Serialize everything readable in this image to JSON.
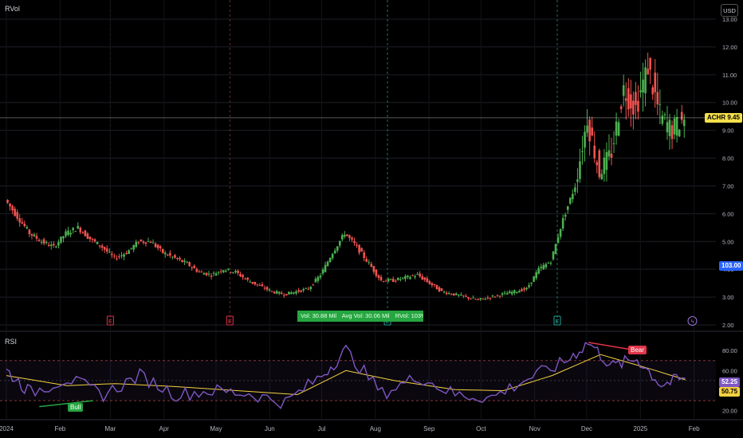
{
  "header": {
    "indicator": "RVol",
    "currency": "USD",
    "rsi_label": "RSI"
  },
  "price_tag": {
    "symbol": "ACHR",
    "value": "9.45",
    "color": "#f5e04a"
  },
  "volume_tag": {
    "value": "103.00",
    "color": "#2962ff"
  },
  "rsi_tags": {
    "rsi": "52.25",
    "ma": "50.75"
  },
  "volume_info": {
    "vol": "Vol: 30.88 Mil",
    "avg": "Avg Vol: 30.06 Mil",
    "rvol": "RVol: 103%"
  },
  "event_markers": [
    "E",
    "E",
    "E",
    "E",
    "ϟ"
  ],
  "rsi_labels": {
    "bull": "Bull",
    "bear": "Bear"
  },
  "colors": {
    "up": "#26a69a",
    "down": "#ef5350",
    "up_body": "#4caf50",
    "rsi_line": "#7e57c2",
    "rsi_ma": "#f5d142"
  },
  "chart_data": [
    {
      "type": "candlestick",
      "symbol": "ACHR",
      "y_ticks": [
        "13.00",
        "12.00",
        "11.00",
        "10.00",
        "9.00",
        "8.00",
        "7.00",
        "6.00",
        "5.00",
        "4.00",
        "3.00",
        "2.00"
      ],
      "ylim": [
        2.0,
        13.0
      ],
      "x_ticks": [
        "2024",
        "Feb",
        "Mar",
        "Apr",
        "May",
        "Jun",
        "Jul",
        "Aug",
        "Sep",
        "Oct",
        "Nov",
        "Dec",
        "2025",
        "Feb"
      ],
      "last_price": 9.45,
      "close_path": [
        {
          "x": "2024-01-01",
          "y": 6.5
        },
        {
          "x": "2024-01-08",
          "y": 5.9
        },
        {
          "x": "2024-01-15",
          "y": 5.3
        },
        {
          "x": "2024-01-22",
          "y": 5.0
        },
        {
          "x": "2024-01-29",
          "y": 4.8
        },
        {
          "x": "2024-02-05",
          "y": 5.3
        },
        {
          "x": "2024-02-12",
          "y": 5.5
        },
        {
          "x": "2024-02-19",
          "y": 5.1
        },
        {
          "x": "2024-02-26",
          "y": 4.8
        },
        {
          "x": "2024-03-04",
          "y": 4.4
        },
        {
          "x": "2024-03-11",
          "y": 4.6
        },
        {
          "x": "2024-03-18",
          "y": 5.0
        },
        {
          "x": "2024-03-25",
          "y": 5.0
        },
        {
          "x": "2024-04-01",
          "y": 4.6
        },
        {
          "x": "2024-04-08",
          "y": 4.4
        },
        {
          "x": "2024-04-15",
          "y": 4.2
        },
        {
          "x": "2024-04-22",
          "y": 3.9
        },
        {
          "x": "2024-04-29",
          "y": 3.8
        },
        {
          "x": "2024-05-06",
          "y": 4.0
        },
        {
          "x": "2024-05-13",
          "y": 3.9
        },
        {
          "x": "2024-05-20",
          "y": 3.6
        },
        {
          "x": "2024-05-27",
          "y": 3.4
        },
        {
          "x": "2024-06-03",
          "y": 3.2
        },
        {
          "x": "2024-06-10",
          "y": 3.1
        },
        {
          "x": "2024-06-17",
          "y": 3.2
        },
        {
          "x": "2024-06-24",
          "y": 3.3
        },
        {
          "x": "2024-07-01",
          "y": 3.8
        },
        {
          "x": "2024-07-08",
          "y": 4.6
        },
        {
          "x": "2024-07-15",
          "y": 5.3
        },
        {
          "x": "2024-07-22",
          "y": 4.8
        },
        {
          "x": "2024-07-29",
          "y": 4.2
        },
        {
          "x": "2024-08-05",
          "y": 3.6
        },
        {
          "x": "2024-08-12",
          "y": 3.6
        },
        {
          "x": "2024-08-19",
          "y": 3.7
        },
        {
          "x": "2024-08-26",
          "y": 3.8
        },
        {
          "x": "2024-09-02",
          "y": 3.5
        },
        {
          "x": "2024-09-09",
          "y": 3.2
        },
        {
          "x": "2024-09-16",
          "y": 3.1
        },
        {
          "x": "2024-09-23",
          "y": 3.0
        },
        {
          "x": "2024-09-30",
          "y": 2.9
        },
        {
          "x": "2024-10-07",
          "y": 3.0
        },
        {
          "x": "2024-10-14",
          "y": 3.1
        },
        {
          "x": "2024-10-21",
          "y": 3.2
        },
        {
          "x": "2024-10-28",
          "y": 3.3
        },
        {
          "x": "2024-11-04",
          "y": 4.0
        },
        {
          "x": "2024-11-11",
          "y": 4.3
        },
        {
          "x": "2024-11-18",
          "y": 5.8
        },
        {
          "x": "2024-11-25",
          "y": 7.0
        },
        {
          "x": "2024-12-02",
          "y": 9.4
        },
        {
          "x": "2024-12-09",
          "y": 7.5
        },
        {
          "x": "2024-12-16",
          "y": 8.2
        },
        {
          "x": "2024-12-23",
          "y": 10.5
        },
        {
          "x": "2024-12-30",
          "y": 9.8
        },
        {
          "x": "2025-01-06",
          "y": 11.3
        },
        {
          "x": "2025-01-13",
          "y": 9.5
        },
        {
          "x": "2025-01-20",
          "y": 9.0
        },
        {
          "x": "2025-01-27",
          "y": 9.45
        }
      ]
    },
    {
      "type": "line",
      "title": "RSI",
      "y_ticks": [
        "80.00",
        "60.00",
        "40.00",
        "20.00"
      ],
      "ylim": [
        15,
        92
      ],
      "bands": [
        30,
        70
      ],
      "series": [
        {
          "name": "RSI",
          "values": [
            {
              "x": "2024-01-01",
              "y": 60
            },
            {
              "x": "2024-01-15",
              "y": 38
            },
            {
              "x": "2024-02-05",
              "y": 52
            },
            {
              "x": "2024-02-26",
              "y": 36
            },
            {
              "x": "2024-03-18",
              "y": 55
            },
            {
              "x": "2024-04-08",
              "y": 36
            },
            {
              "x": "2024-04-29",
              "y": 40
            },
            {
              "x": "2024-05-20",
              "y": 37
            },
            {
              "x": "2024-06-10",
              "y": 28
            },
            {
              "x": "2024-07-01",
              "y": 55
            },
            {
              "x": "2024-07-15",
              "y": 80
            },
            {
              "x": "2024-08-05",
              "y": 37
            },
            {
              "x": "2024-08-26",
              "y": 54
            },
            {
              "x": "2024-09-16",
              "y": 36
            },
            {
              "x": "2024-10-07",
              "y": 33
            },
            {
              "x": "2024-10-28",
              "y": 52
            },
            {
              "x": "2024-11-18",
              "y": 68
            },
            {
              "x": "2024-12-02",
              "y": 88
            },
            {
              "x": "2024-12-16",
              "y": 64
            },
            {
              "x": "2024-12-30",
              "y": 72
            },
            {
              "x": "2025-01-13",
              "y": 46
            },
            {
              "x": "2025-01-27",
              "y": 52.25
            }
          ]
        },
        {
          "name": "RSI-based MA",
          "values": [
            {
              "x": "2024-01-01",
              "y": 55
            },
            {
              "x": "2024-02-05",
              "y": 45
            },
            {
              "x": "2024-03-04",
              "y": 47
            },
            {
              "x": "2024-04-08",
              "y": 44
            },
            {
              "x": "2024-05-13",
              "y": 40
            },
            {
              "x": "2024-06-17",
              "y": 36
            },
            {
              "x": "2024-07-15",
              "y": 60
            },
            {
              "x": "2024-08-12",
              "y": 50
            },
            {
              "x": "2024-09-16",
              "y": 41
            },
            {
              "x": "2024-10-14",
              "y": 40
            },
            {
              "x": "2024-11-11",
              "y": 55
            },
            {
              "x": "2024-12-09",
              "y": 76
            },
            {
              "x": "2025-01-06",
              "y": 62
            },
            {
              "x": "2025-01-27",
              "y": 50.75
            }
          ]
        }
      ]
    }
  ]
}
